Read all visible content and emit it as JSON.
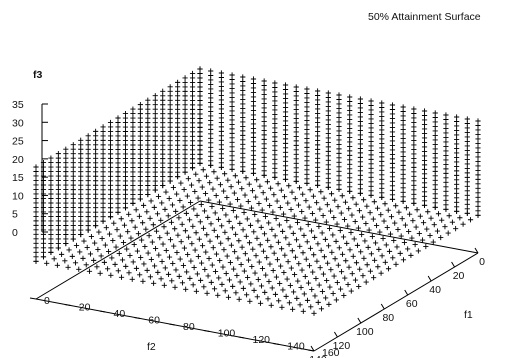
{
  "chart_data": {
    "type": "scatter",
    "projection": "3d",
    "legend": "50% Attainment Surface",
    "legend_placement": "top-right",
    "marker": "+",
    "axes": {
      "x": {
        "label": "f1",
        "range": [
          0,
          160
        ],
        "ticks": [
          "0",
          "20",
          "40",
          "60",
          "80",
          "100",
          "120",
          "140",
          "160"
        ]
      },
      "y": {
        "label": "f2",
        "range": [
          0,
          140
        ],
        "ticks": [
          "0",
          "20",
          "40",
          "60",
          "80",
          "100",
          "120",
          "140"
        ]
      },
      "z": {
        "label": "f3",
        "range": [
          0,
          35
        ],
        "ticks": [
          "0",
          "5",
          "10",
          "15",
          "20",
          "25",
          "30",
          "35"
        ]
      }
    },
    "surfaces": [
      {
        "part": "wall along f1 = 0",
        "f1": 0,
        "f2": [
          0,
          140
        ],
        "f3": [
          10,
          35
        ]
      },
      {
        "part": "wall along f2 = 0",
        "f2": 0,
        "f1": [
          0,
          160
        ],
        "f3": [
          10,
          35
        ]
      },
      {
        "part": "floor",
        "f3": 10,
        "f1": [
          0,
          160
        ],
        "f2": [
          0,
          140
        ]
      }
    ],
    "colors": {
      "points": "#000000",
      "axes": "#000000",
      "background": "#ffffff"
    }
  }
}
